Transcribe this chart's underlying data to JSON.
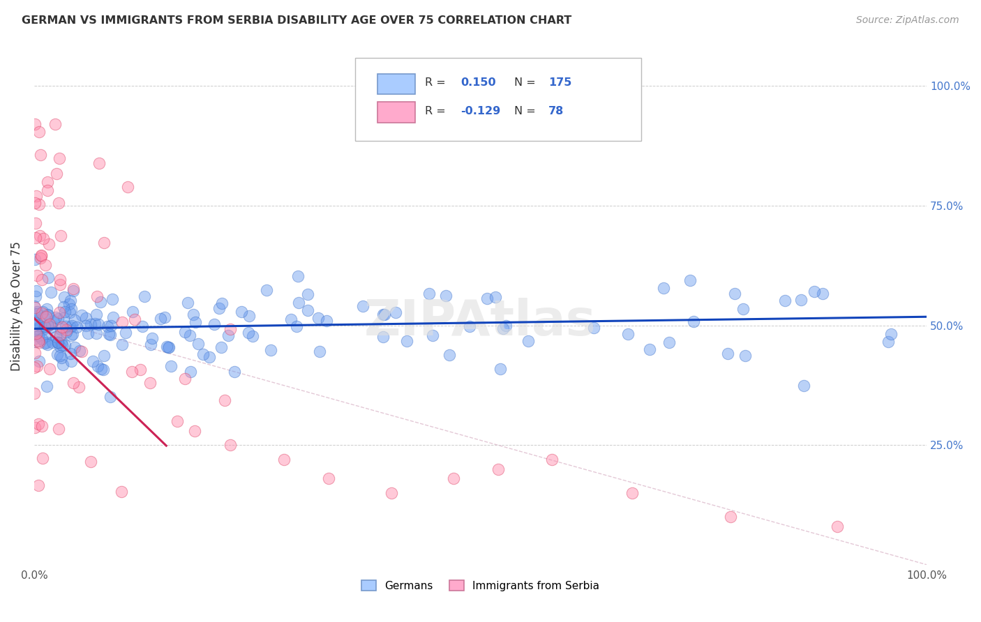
{
  "title": "GERMAN VS IMMIGRANTS FROM SERBIA DISABILITY AGE OVER 75 CORRELATION CHART",
  "source": "Source: ZipAtlas.com",
  "ylabel": "Disability Age Over 75",
  "watermark": "ZIPAtlas",
  "bg_color": "#ffffff",
  "grid_color": "#cccccc",
  "german_color": "#6699ee",
  "german_edge": "#4477cc",
  "serbia_color": "#ff88aa",
  "serbia_edge": "#dd4466",
  "german_line_color": "#1144bb",
  "serbia_line_color": "#cc2255",
  "ref_line_color": "#ddbbcc",
  "xlim": [
    0.0,
    1.0
  ],
  "ylim": [
    0.0,
    1.08
  ],
  "y_tick_positions": [
    0.25,
    0.5,
    0.75,
    1.0
  ],
  "legend_R1": "0.150",
  "legend_N1": "175",
  "legend_R2": "-0.129",
  "legend_N2": "78",
  "legend_color1": "#aaccff",
  "legend_edge1": "#7799cc",
  "legend_color2": "#ffaacc",
  "legend_edge2": "#cc7799",
  "text_color": "#333333",
  "value_color": "#3366cc",
  "tick_color": "#4477cc"
}
